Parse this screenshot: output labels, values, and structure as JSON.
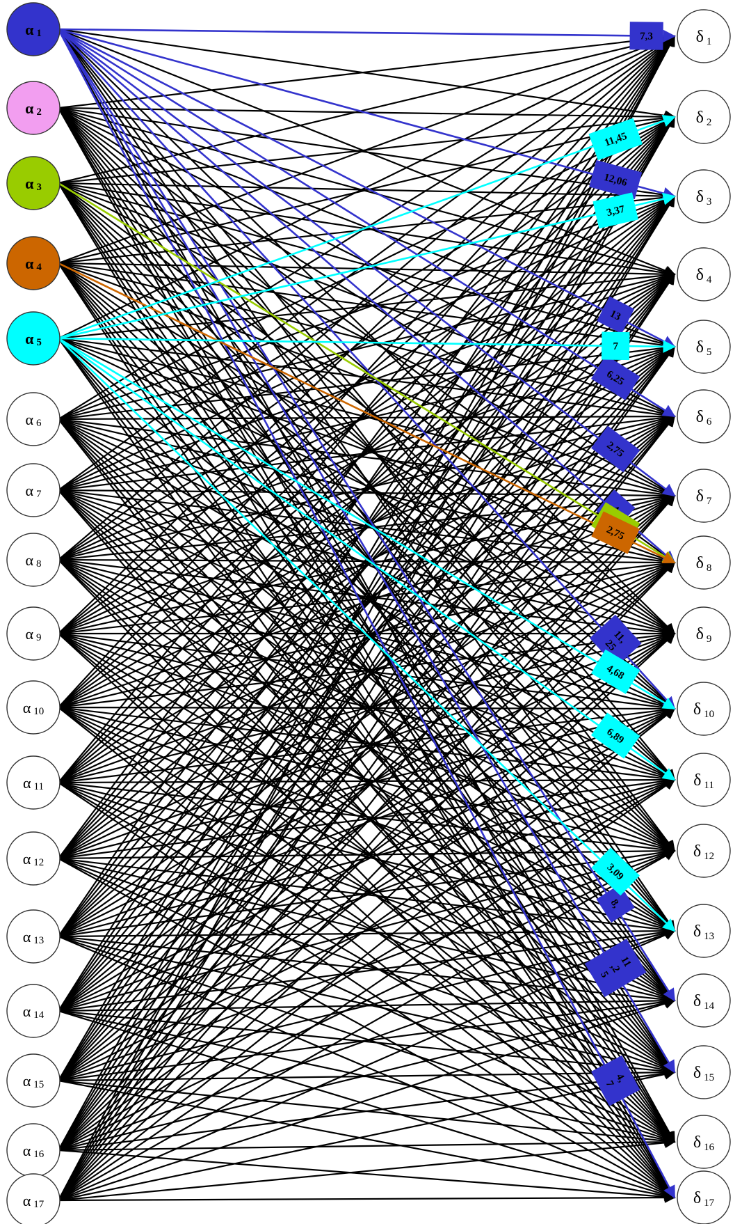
{
  "diagram": {
    "sources": [
      {
        "greek": "α",
        "sub": "1",
        "color": "#3333cc"
      },
      {
        "greek": "α",
        "sub": "2",
        "color": "#f29ef0"
      },
      {
        "greek": "α",
        "sub": "3",
        "color": "#99cc00"
      },
      {
        "greek": "α",
        "sub": "4",
        "color": "#cc6600"
      },
      {
        "greek": "α",
        "sub": "5",
        "color": "#00ffff"
      },
      {
        "greek": "α",
        "sub": "6",
        "color": "#ffffff"
      },
      {
        "greek": "α",
        "sub": "7",
        "color": "#ffffff"
      },
      {
        "greek": "α",
        "sub": "8",
        "color": "#ffffff"
      },
      {
        "greek": "α",
        "sub": "9",
        "color": "#ffffff"
      },
      {
        "greek": "α",
        "sub": "10",
        "color": "#ffffff"
      },
      {
        "greek": "α",
        "sub": "11",
        "color": "#ffffff"
      },
      {
        "greek": "α",
        "sub": "12",
        "color": "#ffffff"
      },
      {
        "greek": "α",
        "sub": "13",
        "color": "#ffffff"
      },
      {
        "greek": "α",
        "sub": "14",
        "color": "#ffffff"
      },
      {
        "greek": "α",
        "sub": "15",
        "color": "#ffffff"
      },
      {
        "greek": "α",
        "sub": "16",
        "color": "#ffffff"
      },
      {
        "greek": "α",
        "sub": "17",
        "color": "#ffffff"
      }
    ],
    "targets": [
      {
        "greek": "δ",
        "sub": "1"
      },
      {
        "greek": "δ",
        "sub": "2"
      },
      {
        "greek": "δ",
        "sub": "3"
      },
      {
        "greek": "δ",
        "sub": "4"
      },
      {
        "greek": "δ",
        "sub": "5"
      },
      {
        "greek": "δ",
        "sub": "6"
      },
      {
        "greek": "δ",
        "sub": "7"
      },
      {
        "greek": "δ",
        "sub": "8"
      },
      {
        "greek": "δ",
        "sub": "9"
      },
      {
        "greek": "δ",
        "sub": "10"
      },
      {
        "greek": "δ",
        "sub": "11"
      },
      {
        "greek": "δ",
        "sub": "12"
      },
      {
        "greek": "δ",
        "sub": "13"
      },
      {
        "greek": "δ",
        "sub": "14"
      },
      {
        "greek": "δ",
        "sub": "15"
      },
      {
        "greek": "δ",
        "sub": "16"
      },
      {
        "greek": "δ",
        "sub": "17"
      }
    ],
    "default_edge_color": "#000000",
    "highlighted_edges": [
      {
        "from": 1,
        "to": 1,
        "label": "7,3",
        "color": "#3333cc"
      },
      {
        "from": 1,
        "to": 3,
        "label": "12,06",
        "color": "#3333cc"
      },
      {
        "from": 1,
        "to": 5,
        "label": "13",
        "color": "#3333cc"
      },
      {
        "from": 1,
        "to": 6,
        "label": "6,25",
        "color": "#3333cc"
      },
      {
        "from": 1,
        "to": 7,
        "label": "2,75",
        "color": "#3333cc"
      },
      {
        "from": 1,
        "to": 8,
        "label": "4",
        "color": "#3333cc"
      },
      {
        "from": 1,
        "to": 10,
        "label": "11,\n25",
        "color": "#3333cc"
      },
      {
        "from": 1,
        "to": 14,
        "label": "8,",
        "color": "#3333cc"
      },
      {
        "from": 1,
        "to": 15,
        "label": "11\n,2\n5",
        "color": "#3333cc"
      },
      {
        "from": 1,
        "to": 17,
        "label": "4,\n7",
        "color": "#3333cc"
      },
      {
        "from": 3,
        "to": 8,
        "label": "2,75",
        "color": "#99cc00"
      },
      {
        "from": 4,
        "to": 8,
        "label": "2,75",
        "color": "#cc6600"
      },
      {
        "from": 5,
        "to": 2,
        "label": "11,45",
        "color": "#00ffff"
      },
      {
        "from": 5,
        "to": 3,
        "label": "3,37",
        "color": "#00ffff"
      },
      {
        "from": 5,
        "to": 5,
        "label": "7",
        "color": "#00ffff"
      },
      {
        "from": 5,
        "to": 10,
        "label": "4,68",
        "color": "#00ffff"
      },
      {
        "from": 5,
        "to": 11,
        "label": "6,89",
        "color": "#00ffff"
      },
      {
        "from": 5,
        "to": 13,
        "label": "3,09",
        "color": "#00ffff"
      }
    ]
  }
}
